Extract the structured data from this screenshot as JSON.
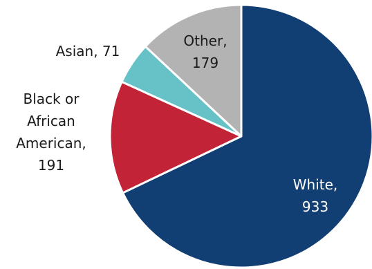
{
  "chart_data": {
    "type": "pie",
    "title": "",
    "slices": [
      {
        "label": "White",
        "value": 933,
        "color": "#123f73",
        "text_lines": [
          "White,",
          "933"
        ]
      },
      {
        "label": "Black or African American",
        "value": 191,
        "color": "#c32336",
        "text_lines": [
          "Black or",
          "African",
          "American,",
          "191"
        ]
      },
      {
        "label": "Asian",
        "value": 71,
        "color": "#67c2c7",
        "text_lines": [
          "Asian, 71"
        ]
      },
      {
        "label": "Other",
        "value": 179,
        "color": "#b3b3b3",
        "text_lines": [
          "Other,",
          "179"
        ]
      }
    ]
  }
}
